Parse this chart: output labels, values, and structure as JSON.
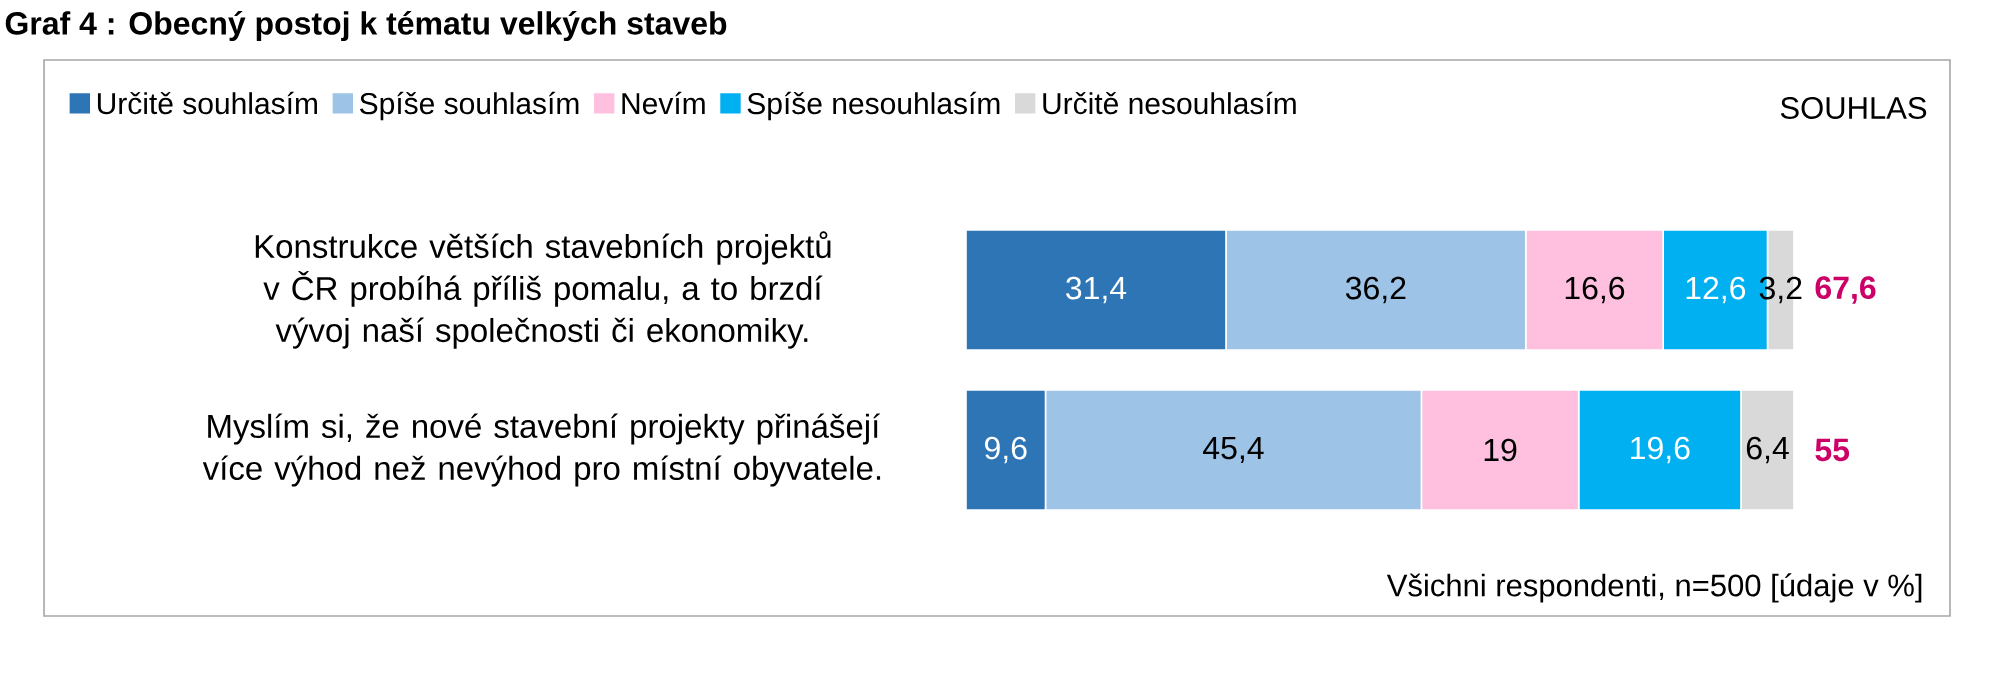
{
  "chart_data": {
    "type": "bar",
    "orientation": "horizontal",
    "stacked": true,
    "title": "Graf 4 : Obecný postoj k tématu velkých staveb",
    "categories": [
      "Konstrukce větších stavebních projektů v ČR probíhá příliš pomalu, a to brzdí vývoj naší společnosti či ekonomiky.",
      "Myslím si, že nové stavební projekty přinášejí více výhod než nevýhod pro místní obyvatele."
    ],
    "series": [
      {
        "name": "Určitě souhlasím",
        "color": "#2e75b6",
        "values": [
          31.4,
          9.6
        ],
        "value_labels": [
          "31,4",
          "9,6"
        ]
      },
      {
        "name": "Spíše souhlasím",
        "color": "#9dc3e6",
        "values": [
          36.2,
          45.4
        ],
        "value_labels": [
          "36,2",
          "45,4"
        ]
      },
      {
        "name": "Nevím",
        "color": "#ffc0e0",
        "values": [
          16.6,
          19
        ],
        "value_labels": [
          "16,6",
          "19"
        ]
      },
      {
        "name": "Spíše nesouhlasím",
        "color": "#00b0f0",
        "values": [
          12.6,
          19.6
        ],
        "value_labels": [
          "12,6",
          "19,6"
        ]
      },
      {
        "name": "Určitě nesouhlasím",
        "color": "#d9d9d9",
        "values": [
          3.2,
          6.4
        ],
        "value_labels": [
          "3,2",
          "6,4"
        ]
      }
    ],
    "legend": "top",
    "annotations": [
      "SOUHLAS",
      "Všichni respondenti, n=500 [údaje v %]",
      {
        "text": "67,6",
        "x": 100,
        "y": "Konstrukce větších stavebních projektů v ČR probíhá příliš pomalu, a to brzdí vývoj naší společnosti či ekonomiky."
      },
      {
        "text": "55",
        "x": 100,
        "y": "Myslím si, že nové stavební projekty přinášejí více výhod než nevýhod pro místní obyvatele."
      }
    ]
  }
}
